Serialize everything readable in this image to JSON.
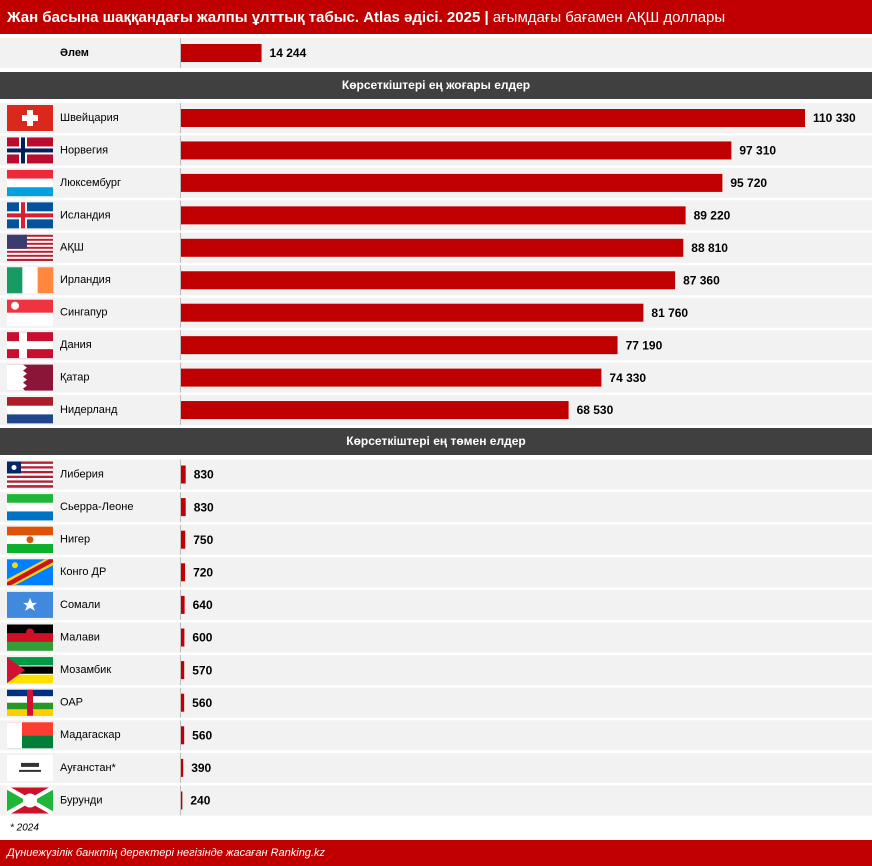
{
  "title": "Жан басына шаққандағы жалпы ұлттық табыс. Atlas әдісі. 2025 |",
  "subtitle": "ағымдағы бағамен АҚШ доллары",
  "footnote": "* 2024",
  "source": "Дүниежүзілік банктің деректері негізінде жасаған Ranking.kz",
  "chart_data": [
    {
      "type": "bar",
      "orientation": "horizontal",
      "color": "#c00000",
      "categories": [
        "Әлем"
      ],
      "values": [
        14244
      ],
      "value_labels": [
        "14 244"
      ]
    },
    {
      "type": "bar",
      "orientation": "horizontal",
      "color": "#c00000",
      "title": "Көрсеткіштері ең жоғары елдер",
      "categories": [
        "Швейцария",
        "Норвегия",
        "Люксембург",
        "Исландия",
        "АҚШ",
        "Ирландия",
        "Сингапур",
        "Дания",
        "Қатар",
        "Нидерланд"
      ],
      "values": [
        110330,
        97310,
        95720,
        89220,
        88810,
        87360,
        81760,
        77190,
        74330,
        68530
      ],
      "value_labels": [
        "110 330",
        "97 310",
        "95 720",
        "89 220",
        "88 810",
        "87 360",
        "81 760",
        "77 190",
        "74 330",
        "68 530"
      ]
    },
    {
      "type": "bar",
      "orientation": "horizontal",
      "color": "#c00000",
      "title": "Көрсеткіштері ең төмен елдер",
      "categories": [
        "Либерия",
        "Сьерра-Леоне",
        "Нигер",
        "Конго ДР",
        "Сомали",
        "Малави",
        "Мозамбик",
        "ОАР",
        "Мадагаскар",
        "Ауғанстан*",
        "Бурунди"
      ],
      "values": [
        830,
        830,
        750,
        720,
        640,
        600,
        570,
        560,
        560,
        390,
        240
      ]
    }
  ]
}
